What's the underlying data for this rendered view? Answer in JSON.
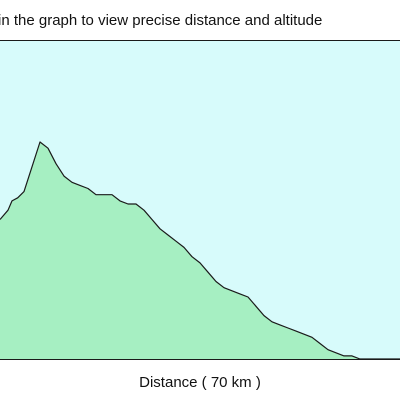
{
  "hint": {
    "text": "in the graph to view precise distance and altitude"
  },
  "colors": {
    "plot_background": "#d7fbfb",
    "profile_fill": "#a6efc2",
    "profile_line": "#1a1a1a",
    "border": "#1a1a1a"
  },
  "chart_data": {
    "type": "area",
    "title": "",
    "xlabel": "Distance ( 70 km )",
    "ylabel": "",
    "grid": false,
    "xlim": [
      0,
      70
    ],
    "ylim": [
      0,
      100
    ],
    "x": [
      0,
      1.4,
      2.1,
      3.1,
      4.2,
      5.6,
      7.0,
      8.4,
      9.8,
      11.2,
      12.6,
      14.0,
      15.4,
      16.8,
      18.2,
      19.6,
      21.0,
      22.4,
      23.8,
      25.2,
      26.6,
      28.0,
      29.4,
      30.8,
      32.2,
      33.6,
      35.0,
      36.4,
      37.8,
      39.2,
      40.6,
      42.0,
      43.4,
      44.8,
      46.2,
      47.6,
      49.0,
      50.4,
      51.8,
      53.2,
      54.6,
      56.0,
      57.4,
      58.8,
      60.2,
      61.6,
      63.0,
      64.4,
      65.8,
      67.2,
      68.6,
      70.0
    ],
    "series": [
      {
        "values": [
          45,
          48,
          51,
          52,
          54,
          62,
          70,
          68,
          63,
          59,
          57,
          56,
          55,
          53,
          53,
          53,
          51,
          50,
          50,
          48,
          45,
          42,
          40,
          38,
          36,
          33,
          31,
          28,
          25,
          23,
          22,
          21,
          20,
          17,
          14,
          12,
          11,
          10,
          9,
          8,
          7,
          5,
          3,
          2,
          1,
          1,
          0,
          0,
          0,
          0,
          0,
          0
        ]
      }
    ]
  }
}
